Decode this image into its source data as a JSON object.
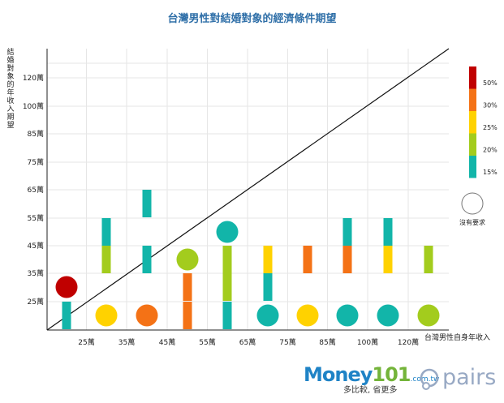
{
  "chart_data": {
    "type": "scatter",
    "title": "台灣男性對結婚對象的經濟條件期望",
    "xlabel": "台灣男性自身年收入",
    "ylabel": "結婚對象的年收入期望",
    "x_ticks": [
      "25萬",
      "35萬",
      "45萬",
      "55萬",
      "65萬",
      "75萬",
      "85萬",
      "100萬",
      "120萬"
    ],
    "y_ticks": [
      "25萬",
      "35萬",
      "45萬",
      "55萬",
      "65萬",
      "75萬",
      "85萬",
      "100萬",
      "120萬"
    ],
    "legend": {
      "levels": [
        "50%",
        "30%",
        "25%",
        "20%",
        "15%"
      ],
      "level_colors": [
        "#c00000",
        "#f47216",
        "#ffd200",
        "#a3cc1d",
        "#12b5a9"
      ],
      "circle_label": "沒有要求",
      "placement": "right"
    },
    "diagonal_reference_line": true,
    "bars": [
      {
        "x": "25萬",
        "y": "25萬",
        "level": "15%"
      },
      {
        "x": "35萬",
        "y": "45萬",
        "level": "20%"
      },
      {
        "x": "35萬",
        "y": "55萬",
        "level": "15%"
      },
      {
        "x": "45萬",
        "y": "45萬",
        "level": "15%"
      },
      {
        "x": "45萬",
        "y": "65萬",
        "level": "15%"
      },
      {
        "x": "55萬",
        "y": "25萬",
        "level": "30%"
      },
      {
        "x": "55萬",
        "y": "35萬",
        "level": "30%"
      },
      {
        "x": "65萬",
        "y": "25萬",
        "level": "15%"
      },
      {
        "x": "65萬",
        "y": "35萬",
        "level": "20%"
      },
      {
        "x": "65萬",
        "y": "45萬",
        "level": "20%"
      },
      {
        "x": "75萬",
        "y": "35萬",
        "level": "15%"
      },
      {
        "x": "75萬",
        "y": "45萬",
        "level": "25%"
      },
      {
        "x": "85萬",
        "y": "45萬",
        "level": "30%"
      },
      {
        "x": "100萬",
        "y": "45萬",
        "level": "30%"
      },
      {
        "x": "100萬",
        "y": "55萬",
        "level": "15%"
      },
      {
        "x": "120萬",
        "y": "45萬",
        "level": "25%"
      },
      {
        "x": "120萬",
        "y": "55萬",
        "level": "15%"
      },
      {
        "x": "120萬+",
        "y": "45萬",
        "level": "20%"
      }
    ],
    "circles": [
      {
        "x": "25萬",
        "y": "35萬",
        "level": "50%",
        "no_requirement": false
      },
      {
        "x": "35萬",
        "y": "25萬",
        "level": "25%",
        "no_requirement": true
      },
      {
        "x": "45萬",
        "y": "25萬",
        "level": "30%",
        "no_requirement": true
      },
      {
        "x": "55萬",
        "y": "45萬",
        "level": "20%",
        "no_requirement": false
      },
      {
        "x": "65萬",
        "y": "55萬",
        "level": "15%",
        "no_requirement": false
      },
      {
        "x": "75萬",
        "y": "25萬",
        "level": "15%",
        "no_requirement": true
      },
      {
        "x": "85萬",
        "y": "25萬",
        "level": "25%",
        "no_requirement": true
      },
      {
        "x": "100萬",
        "y": "25萬",
        "level": "15%",
        "no_requirement": true
      },
      {
        "x": "120萬",
        "y": "25萬",
        "level": "15%",
        "no_requirement": true
      },
      {
        "x": "120萬+",
        "y": "25萬",
        "level": "20%",
        "no_requirement": true
      }
    ]
  },
  "branding": {
    "money_logo_prefix": "M",
    "money_logo_o": "o",
    "money_logo_ney": "ney",
    "money_logo_num": "101",
    "money_logo_domain": ".com.tw",
    "money_tagline": "多比較, 省更多",
    "pairs_logo": "pairs"
  }
}
